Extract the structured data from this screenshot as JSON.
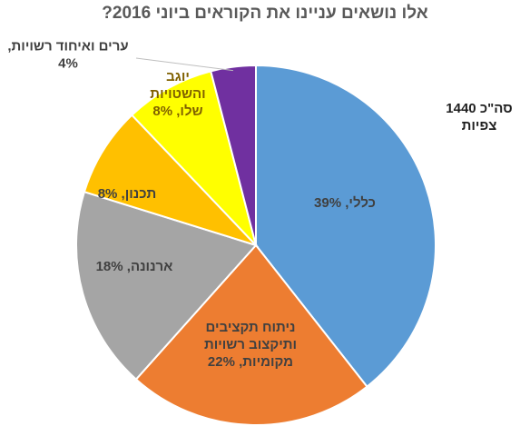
{
  "chart_data": {
    "type": "pie",
    "title": "אלו נושאים עניינו את הקוראים ביוני 2016?",
    "total_note": [
      "סה\"כ 1440",
      "צפיות"
    ],
    "slices": [
      {
        "label": [
          "כללי, 39%"
        ],
        "value": 39,
        "color": "#5b9bd5",
        "text_color": "#404040"
      },
      {
        "label": [
          "ניתוח תקציבים",
          "ותיקצוב רשויות",
          "מקומיות, 22%"
        ],
        "value": 22,
        "color": "#ed7d31",
        "text_color": "#404040"
      },
      {
        "label": [
          "ארנונה, 18%"
        ],
        "value": 18,
        "color": "#a5a5a5",
        "text_color": "#404040"
      },
      {
        "label": [
          "תכנון, 8%"
        ],
        "value": 8,
        "color": "#ffc000",
        "text_color": "#404040"
      },
      {
        "label": [
          "יוגב",
          "והשטויות",
          "שלו, 8%"
        ],
        "value": 8,
        "color": "#ffff00",
        "text_color": "#7f6000"
      },
      {
        "label": [
          "ערים ואיחוד רשויות,",
          "4%"
        ],
        "value": 4,
        "color": "#7030a0",
        "text_color": "#404040"
      }
    ],
    "start_angle_deg": 0,
    "direction": "clockwise",
    "legend": "none"
  }
}
